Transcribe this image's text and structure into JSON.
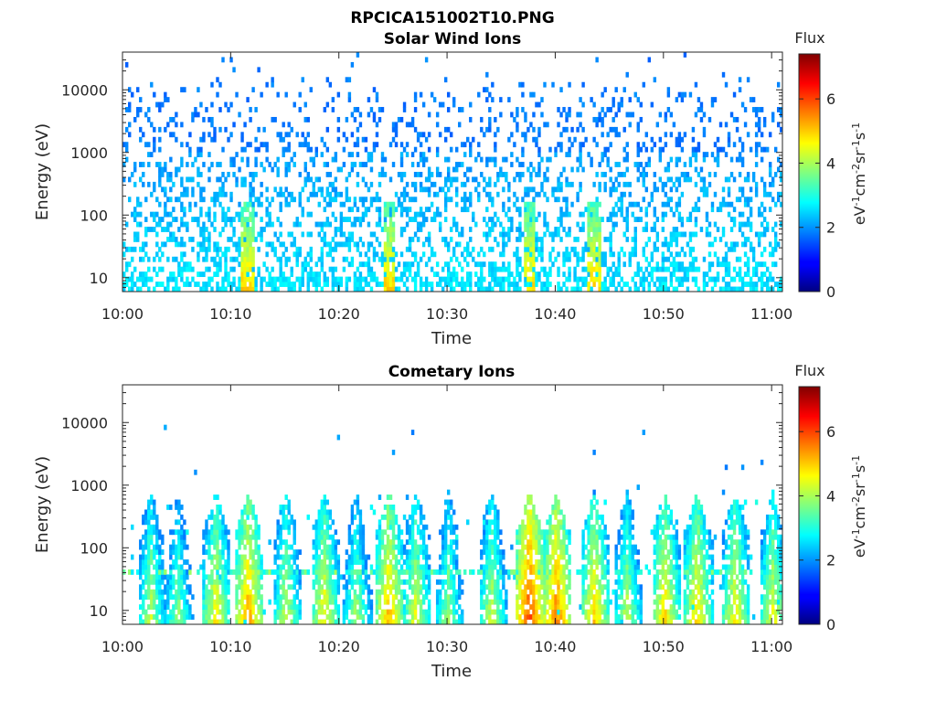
{
  "figure_title": "RPCICA151002T10.PNG",
  "chart_data": [
    {
      "type": "heatmap",
      "title": "Solar Wind Ions",
      "xlabel": "Time",
      "ylabel": "Energy (eV)",
      "y_scale": "log",
      "xlim": [
        "10:00",
        "11:01"
      ],
      "ylim_eV": [
        6,
        40000
      ],
      "x_ticks": [
        "10:00",
        "10:10",
        "10:20",
        "10:30",
        "10:40",
        "10:50",
        "11:00"
      ],
      "y_ticks": [
        "10",
        "100",
        "1000",
        "10000"
      ],
      "colorbar": {
        "title": "Flux",
        "label": "eV⁻¹cm⁻²sr⁻¹s⁻¹",
        "range": [
          0,
          7.4
        ],
        "ticks": [
          "0",
          "2",
          "4",
          "6"
        ],
        "colormap": "jet"
      },
      "features": {
        "background_level": "scattered points ~2 from 10 eV to ~20000 eV",
        "low_energy_enhancement_minutes": [
          11.5,
          24.5,
          37.5,
          43.5
        ],
        "peak_low_energy_value": 5.2
      }
    },
    {
      "type": "heatmap",
      "title": "Cometary Ions",
      "xlabel": "Time",
      "ylabel": "Energy (eV)",
      "y_scale": "log",
      "xlim": [
        "10:00",
        "11:01"
      ],
      "ylim_eV": [
        6,
        40000
      ],
      "x_ticks": [
        "10:00",
        "10:10",
        "10:20",
        "10:30",
        "10:40",
        "10:50",
        "11:00"
      ],
      "y_ticks": [
        "10",
        "100",
        "1000",
        "10000"
      ],
      "colorbar": {
        "title": "Flux",
        "label": "eV⁻¹cm⁻²sr⁻¹s⁻¹",
        "range": [
          0,
          7.4
        ],
        "ticks": [
          "0",
          "2",
          "4",
          "6"
        ],
        "colormap": "jet"
      },
      "features": {
        "burst_centers_minutes": [
          2.5,
          5,
          8.5,
          11.5,
          15,
          18.5,
          21.5,
          24.5,
          27,
          30,
          34,
          37.5,
          40,
          43.5,
          46.5,
          50,
          53,
          56.5,
          60
        ],
        "burst_peak_values": [
          4.5,
          4.2,
          5.0,
          5.6,
          4.6,
          5.0,
          4.3,
          5.5,
          4.8,
          4.3,
          4.6,
          6.3,
          5.9,
          5.3,
          4.5,
          5.2,
          5.2,
          5.0,
          4.8
        ],
        "burst_energy_range_eV": [
          6,
          800
        ],
        "horizontal_band_eV": 40
      }
    }
  ]
}
